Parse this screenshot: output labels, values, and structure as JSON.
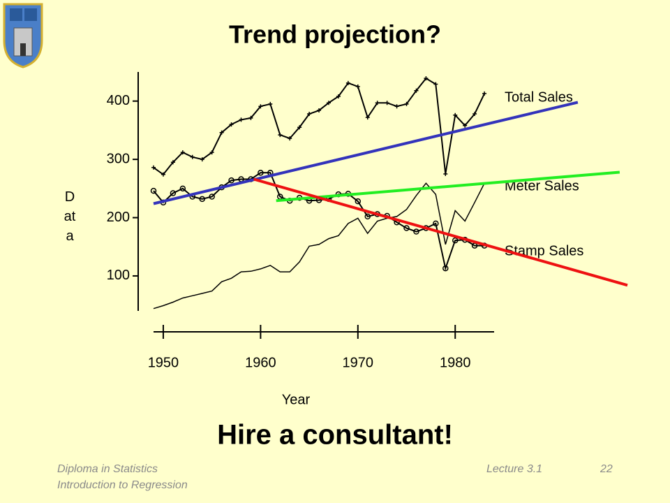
{
  "slide": {
    "title": "Trend projection?",
    "conclusion": "Hire a consultant!",
    "footer": {
      "course": "Diploma in Statistics",
      "subject": "Introduction to Regression",
      "lecture": "Lecture 3.1",
      "page": "22"
    }
  },
  "chart_data": {
    "type": "line",
    "x_label": "Year",
    "y_label": "Data",
    "x": [
      1949,
      1950,
      1951,
      1952,
      1953,
      1954,
      1955,
      1956,
      1957,
      1958,
      1959,
      1960,
      1961,
      1962,
      1963,
      1964,
      1965,
      1966,
      1967,
      1968,
      1969,
      1970,
      1971,
      1972,
      1973,
      1974,
      1975,
      1976,
      1977,
      1978,
      1979,
      1980,
      1981,
      1982,
      1983
    ],
    "series": [
      {
        "name": "Total Sales",
        "color": "#000000",
        "marker": "plus",
        "values": [
          286,
          274,
          295,
          312,
          304,
          300,
          312,
          346,
          360,
          368,
          371,
          391,
          395,
          342,
          336,
          355,
          378,
          384,
          397,
          408,
          431,
          425,
          372,
          397,
          397,
          391,
          395,
          418,
          439,
          429,
          275,
          376,
          358,
          378,
          413
        ]
      },
      {
        "name": "Meter Sales",
        "color": "#000000",
        "marker": "none",
        "values": [
          44,
          49,
          55,
          62,
          66,
          70,
          74,
          90,
          96,
          107,
          108,
          112,
          118,
          107,
          107,
          124,
          151,
          154,
          164,
          169,
          190,
          199,
          173,
          194,
          199,
          202,
          214,
          238,
          259,
          240,
          154,
          212,
          194,
          226,
          259
        ]
      },
      {
        "name": "Stamp Sales",
        "color": "#000000",
        "marker": "circle",
        "values": [
          246,
          226,
          242,
          250,
          236,
          232,
          236,
          252,
          264,
          266,
          266,
          277,
          277,
          236,
          229,
          234,
          229,
          230,
          232,
          240,
          241,
          228,
          202,
          206,
          203,
          192,
          182,
          176,
          182,
          190,
          113,
          161,
          162,
          152,
          152
        ]
      }
    ],
    "trend_lines": [
      {
        "color": "#3333bb",
        "x": [
          1949,
          1992.6
        ],
        "values": [
          224,
          398
        ]
      },
      {
        "color": "#22ee22",
        "x": [
          1961.6,
          1996.9
        ],
        "values": [
          229,
          278
        ]
      },
      {
        "color": "#ee1111",
        "x": [
          1959.3,
          1997.7
        ],
        "values": [
          266,
          84
        ]
      }
    ],
    "xlim": [
      1949,
      1984
    ],
    "xticks": [
      1950,
      1960,
      1970,
      1980
    ],
    "ylim": [
      40,
      450
    ],
    "yticks": [
      100,
      200,
      300,
      400
    ],
    "grid": false
  }
}
